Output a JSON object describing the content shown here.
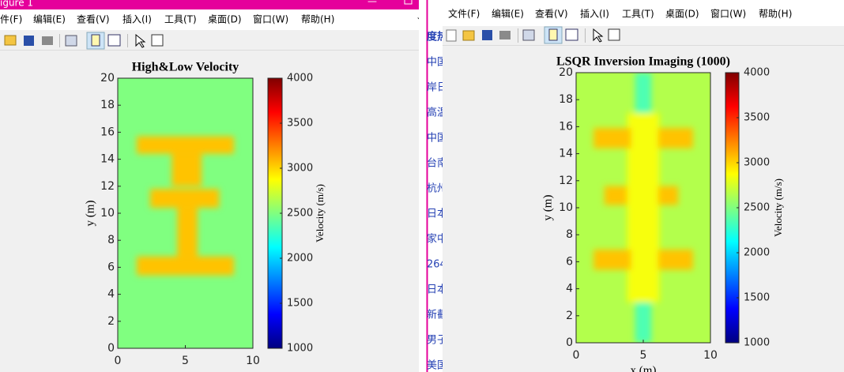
{
  "left_window": {
    "title": "igure 1",
    "menu": [
      "件(F)",
      "编辑(E)",
      "查看(V)",
      "插入(I)",
      "工具(T)",
      "桌面(D)",
      "窗口(W)",
      "帮助(H)"
    ]
  },
  "browser_strip": [
    "度热",
    "中国",
    "岸日",
    "高温",
    "中国",
    "台南",
    "杭州",
    "日本",
    "家中",
    "264",
    "日本",
    "新截",
    "男子",
    "美国"
  ],
  "right_window": {
    "menu": [
      "文件(F)",
      "编辑(E)",
      "查看(V)",
      "插入(I)",
      "工具(T)",
      "桌面(D)",
      "窗口(W)",
      "帮助(H)"
    ]
  },
  "chart_data": [
    {
      "type": "heatmap",
      "title": "High&Low Velocity",
      "ylabel": "y (m)",
      "xlim": [
        0,
        10
      ],
      "ylim": [
        0,
        20
      ],
      "xticks": [
        0,
        5,
        10
      ],
      "yticks": [
        0,
        2,
        4,
        6,
        8,
        10,
        12,
        14,
        16,
        18,
        20
      ],
      "colorbar": {
        "label": "Velocity (m/s)",
        "clim": [
          1000,
          4000
        ],
        "ticks": [
          1000,
          1500,
          2000,
          2500,
          3000,
          3500,
          4000
        ]
      },
      "background": 2500,
      "regions": [
        {
          "x": [
            1.4,
            8.6
          ],
          "y": [
            14.4,
            15.7
          ],
          "value": 3050
        },
        {
          "x": [
            4,
            6.2
          ],
          "y": [
            12,
            14.4
          ],
          "value": 3050
        },
        {
          "x": [
            2.4,
            7.5
          ],
          "y": [
            10.4,
            11.8
          ],
          "value": 3050
        },
        {
          "x": [
            4.4,
            5.9
          ],
          "y": [
            6.8,
            10.4
          ],
          "value": 3050
        },
        {
          "x": [
            1.4,
            8.6
          ],
          "y": [
            5.4,
            6.8
          ],
          "value": 3050
        }
      ]
    },
    {
      "type": "heatmap",
      "title": "LSQR Inversion Imaging (1000)",
      "xlabel": "x (m)",
      "ylabel": "y (m)",
      "xlim": [
        0,
        10
      ],
      "ylim": [
        0,
        20
      ],
      "xticks": [
        0,
        5,
        10
      ],
      "yticks": [
        0,
        2,
        4,
        6,
        8,
        10,
        12,
        14,
        16,
        18,
        20
      ],
      "colorbar": {
        "label": "Velocity (m/s)",
        "clim": [
          1000,
          4000
        ],
        "ticks": [
          1000,
          1500,
          2000,
          2500,
          3000,
          3500,
          4000
        ]
      },
      "background": 2650,
      "regions": [
        {
          "x": [
            4.4,
            5.6
          ],
          "y": [
            17,
            20
          ],
          "value": 2350
        },
        {
          "x": [
            4.4,
            5.6
          ],
          "y": [
            0,
            3
          ],
          "value": 2350
        },
        {
          "x": [
            3.8,
            6.2
          ],
          "y": [
            3,
            17
          ],
          "value": 2850
        },
        {
          "x": [
            1.3,
            4.1
          ],
          "y": [
            14.4,
            15.9
          ],
          "value": 3050
        },
        {
          "x": [
            6.1,
            8.7
          ],
          "y": [
            14.4,
            15.9
          ],
          "value": 3050
        },
        {
          "x": [
            2.1,
            3.8
          ],
          "y": [
            10.2,
            11.6
          ],
          "value": 3050
        },
        {
          "x": [
            6.1,
            7.6
          ],
          "y": [
            10.2,
            11.6
          ],
          "value": 3050
        },
        {
          "x": [
            1.3,
            4.1
          ],
          "y": [
            5.4,
            6.9
          ],
          "value": 3050
        },
        {
          "x": [
            6.1,
            8.7
          ],
          "y": [
            5.4,
            6.9
          ],
          "value": 3050
        }
      ]
    }
  ]
}
